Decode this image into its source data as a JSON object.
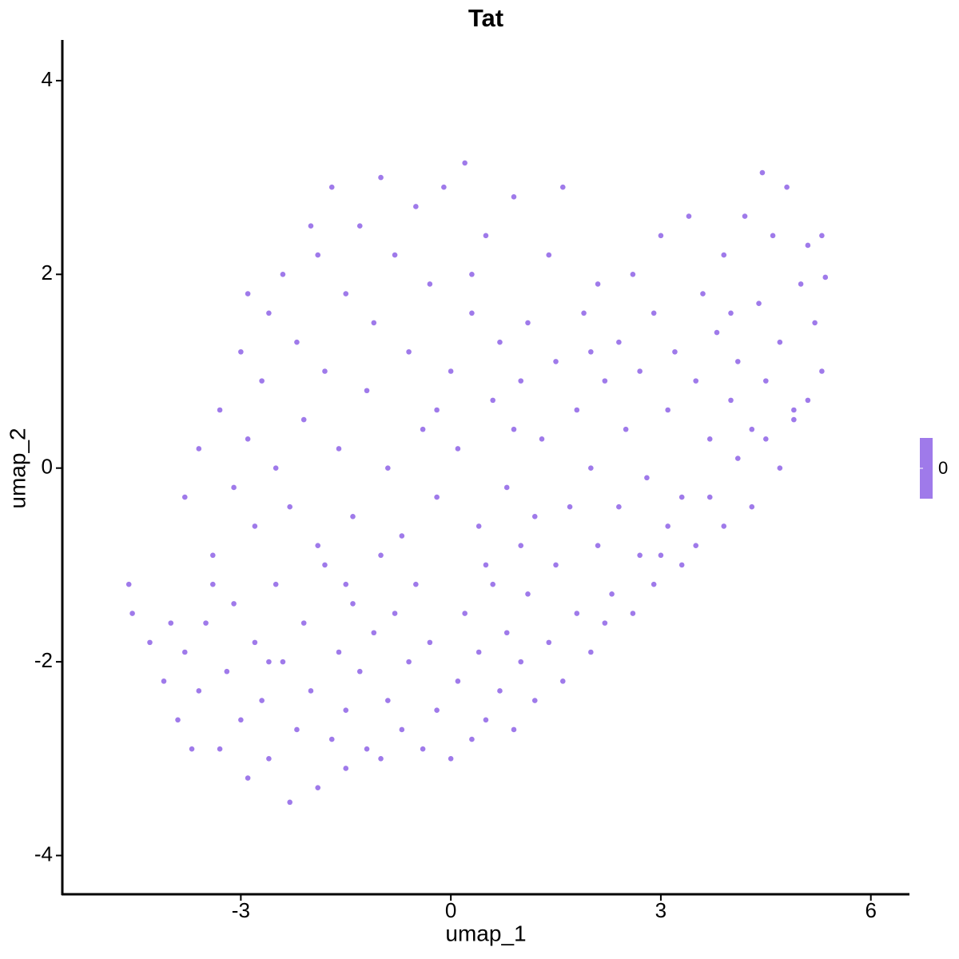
{
  "chart_data": {
    "type": "scatter",
    "title": "Tat",
    "x_label": "umap_1",
    "y_label": "umap_2",
    "color": "#9f7aea",
    "xlim": [
      -5.55,
      6.54
    ],
    "ylim": [
      -4.4,
      4.42
    ],
    "xticks": [
      -3,
      0,
      3,
      6
    ],
    "yticks": [
      -4,
      -2,
      0,
      2,
      4
    ],
    "grid": false,
    "colorbar": {
      "ticks": [
        0
      ],
      "color": "#9f7aea"
    },
    "x": [
      -4.6,
      -4.55,
      -4.3,
      -4.1,
      -4.0,
      -3.9,
      -3.7,
      -3.6,
      -3.8,
      -3.5,
      -3.3,
      -3.2,
      -3.1,
      -3.0,
      -2.9,
      -2.8,
      -2.7,
      -2.6,
      -2.5,
      -2.4,
      -2.3,
      -2.2,
      -2.1,
      -2.0,
      -1.9,
      -1.8,
      -1.7,
      -1.6,
      -1.5,
      -1.4,
      -1.5,
      -1.3,
      -1.2,
      -1.1,
      -1.0,
      -0.9,
      -0.8,
      -0.7,
      -0.6,
      -0.5,
      -0.4,
      -0.3,
      -0.2,
      0.0,
      0.1,
      0.2,
      0.3,
      0.4,
      0.5,
      0.6,
      0.7,
      0.8,
      0.9,
      1.0,
      1.1,
      1.2,
      1.4,
      1.5,
      1.6,
      1.8,
      2.0,
      2.1,
      2.3,
      2.4,
      2.6,
      2.7,
      2.9,
      3.1,
      3.3,
      3.5,
      3.7,
      3.9,
      4.1,
      4.3,
      4.5,
      4.7,
      4.9,
      5.1,
      5.3,
      -3.8,
      -3.6,
      -3.4,
      -3.3,
      -3.1,
      -3.0,
      -2.9,
      -2.8,
      -2.7,
      -2.6,
      -2.5,
      -2.4,
      -2.3,
      -2.2,
      -2.1,
      -2.0,
      -1.9,
      -1.8,
      -1.7,
      -1.6,
      -1.5,
      -1.4,
      -1.3,
      -1.2,
      -1.1,
      -1.0,
      -0.9,
      -0.8,
      -0.7,
      -0.6,
      -0.5,
      -0.4,
      -0.3,
      -0.2,
      -0.1,
      0.0,
      0.1,
      0.2,
      0.3,
      0.4,
      0.5,
      0.6,
      0.7,
      0.8,
      0.9,
      1.0,
      1.1,
      1.2,
      1.3,
      1.4,
      1.6,
      1.5,
      1.7,
      1.8,
      1.9,
      2.0,
      2.1,
      2.2,
      2.4,
      2.5,
      2.6,
      2.7,
      2.8,
      2.9,
      3.0,
      3.1,
      3.2,
      3.3,
      3.4,
      3.5,
      3.6,
      3.7,
      3.8,
      3.9,
      4.0,
      4.1,
      4.2,
      4.3,
      4.4,
      4.45,
      4.5,
      4.6,
      4.7,
      4.8,
      4.9,
      5.0,
      5.1,
      5.2,
      5.3,
      5.35,
      -2.6,
      -3.4,
      -1.0,
      0.5,
      -0.2,
      -1.5,
      1.0,
      2.2,
      0.9,
      -2.9,
      -1.9,
      0.3,
      2.0,
      3.0,
      4.0
    ],
    "y": [
      -1.2,
      -1.5,
      -1.8,
      -2.2,
      -1.6,
      -2.6,
      -2.9,
      -2.3,
      -1.9,
      -1.6,
      -2.9,
      -2.1,
      -1.4,
      -2.6,
      -3.2,
      -1.8,
      -2.4,
      -3.0,
      -1.2,
      -2.0,
      -3.45,
      -2.7,
      -1.6,
      -2.3,
      -3.3,
      -1.0,
      -2.8,
      -1.9,
      -2.5,
      -1.4,
      -3.1,
      -2.1,
      -2.9,
      -1.7,
      -3.0,
      -2.4,
      -1.5,
      -2.7,
      -2.0,
      -1.2,
      -2.9,
      -1.8,
      -2.5,
      -3.0,
      -2.2,
      -1.5,
      -2.8,
      -1.9,
      -2.6,
      -1.2,
      -2.3,
      -1.7,
      -2.7,
      -2.0,
      -1.3,
      -2.4,
      -1.8,
      -1.0,
      -2.2,
      -1.5,
      -1.9,
      -0.8,
      -1.3,
      -0.4,
      -1.5,
      -0.9,
      -1.2,
      -0.6,
      -1.0,
      -0.8,
      -0.3,
      -0.6,
      0.1,
      -0.4,
      0.3,
      0.0,
      0.6,
      0.7,
      1.0,
      -0.3,
      0.2,
      -0.9,
      0.6,
      -0.2,
      1.2,
      0.3,
      -0.6,
      0.9,
      1.6,
      0.0,
      2.0,
      -0.4,
      1.3,
      0.5,
      2.5,
      -0.8,
      1.0,
      2.9,
      0.2,
      1.8,
      -0.5,
      2.5,
      0.8,
      1.5,
      3.0,
      0.0,
      2.2,
      -0.7,
      1.2,
      2.7,
      0.4,
      1.9,
      -0.3,
      2.9,
      1.0,
      0.2,
      3.15,
      1.6,
      -0.6,
      2.4,
      0.7,
      1.3,
      -0.2,
      2.8,
      0.9,
      1.5,
      -0.5,
      0.3,
      2.2,
      2.9,
      1.1,
      -0.4,
      0.6,
      1.6,
      0.0,
      1.9,
      0.9,
      1.3,
      0.4,
      2.0,
      1.0,
      -0.1,
      1.6,
      2.4,
      0.6,
      1.2,
      -0.3,
      2.6,
      0.9,
      1.8,
      0.3,
      1.4,
      2.2,
      0.7,
      1.1,
      2.6,
      0.4,
      1.7,
      3.05,
      0.9,
      2.4,
      1.3,
      2.9,
      0.5,
      1.9,
      2.3,
      1.5,
      2.4,
      1.97,
      -2.0,
      -1.2,
      -0.9,
      -1.0,
      0.6,
      -1.2,
      -0.8,
      -1.6,
      0.4,
      1.8,
      2.2,
      2.0,
      1.2,
      -0.9,
      1.6
    ]
  }
}
